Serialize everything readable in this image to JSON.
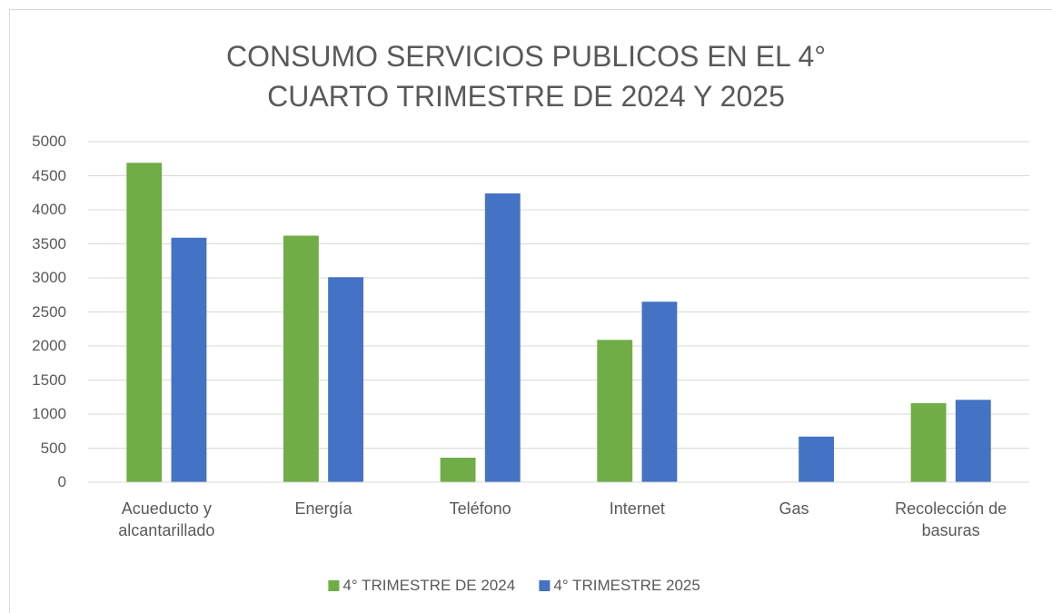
{
  "chart_data": {
    "type": "bar",
    "title": "CONSUMO SERVICIOS PUBLICOS EN EL 4° CUARTO TRIMESTRE DE 2024 Y 2025",
    "categories": [
      "Acueducto y alcantarillado",
      "Energía",
      "Teléfono",
      "Internet",
      "Gas",
      "Recolección de basuras"
    ],
    "series": [
      {
        "name": "4° TRIMESTRE DE 2024",
        "color": "#70ad47",
        "values": [
          4690,
          3620,
          360,
          2090,
          0,
          1160
        ]
      },
      {
        "name": "4° TRIMESTRE 2025",
        "color": "#4472c4",
        "values": [
          3590,
          3010,
          4240,
          2650,
          670,
          1210
        ]
      }
    ],
    "ylim": [
      0,
      5000
    ],
    "yticks": [
      0,
      500,
      1000,
      1500,
      2000,
      2500,
      3000,
      3500,
      4000,
      4500,
      5000
    ],
    "grid": true,
    "legend": "bottom"
  }
}
